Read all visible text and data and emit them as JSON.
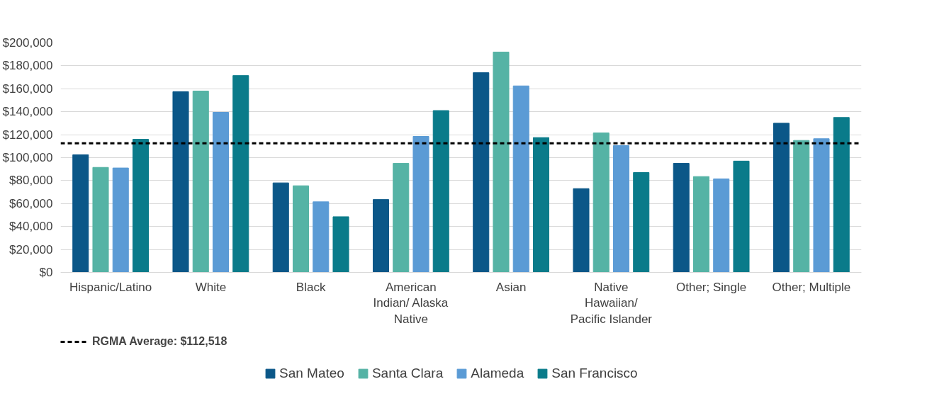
{
  "chart_data": {
    "type": "bar",
    "categories": [
      "Hispanic/Latino",
      "White",
      "Black",
      "American\nIndian/ Alaska\nNative",
      "Asian",
      "Native\nHawaiian/\nPacific Islander",
      "Other; Single",
      "Other; Multiple"
    ],
    "series": [
      {
        "name": "San Mateo",
        "color": "#0b5788",
        "values": [
          102500,
          157500,
          78000,
          63500,
          174000,
          73000,
          95000,
          130000
        ]
      },
      {
        "name": "Santa Clara",
        "color": "#55b3a5",
        "values": [
          91500,
          158000,
          75500,
          95000,
          192000,
          121500,
          83500,
          115000
        ]
      },
      {
        "name": "Alameda",
        "color": "#5b9bd5",
        "values": [
          91000,
          139500,
          61500,
          118500,
          162500,
          110500,
          81500,
          116500
        ]
      },
      {
        "name": "San Francisco",
        "color": "#0a7b8a",
        "values": [
          116000,
          171500,
          48500,
          141000,
          117500,
          87000,
          97000,
          135000
        ]
      }
    ],
    "ylim": [
      0,
      200000
    ],
    "yticks": [
      {
        "value": 0,
        "label": "$0"
      },
      {
        "value": 20000,
        "label": "$20,000"
      },
      {
        "value": 40000,
        "label": "$40,000"
      },
      {
        "value": 60000,
        "label": "$60,000"
      },
      {
        "value": 80000,
        "label": "$80,000"
      },
      {
        "value": 100000,
        "label": "$100,000"
      },
      {
        "value": 120000,
        "label": "$120,000"
      },
      {
        "value": 140000,
        "label": "$140,000"
      },
      {
        "value": 160000,
        "label": "$160,000"
      },
      {
        "value": 180000,
        "label": "$180,000"
      },
      {
        "value": 200000,
        "label": "$200,000"
      }
    ],
    "ref_lines": [
      {
        "axis": "y",
        "value": 112518,
        "label": "RGMA Average: $112,518",
        "color": "#000000",
        "line_style": "dashed"
      }
    ],
    "grid": "y",
    "legend": "bottom"
  }
}
